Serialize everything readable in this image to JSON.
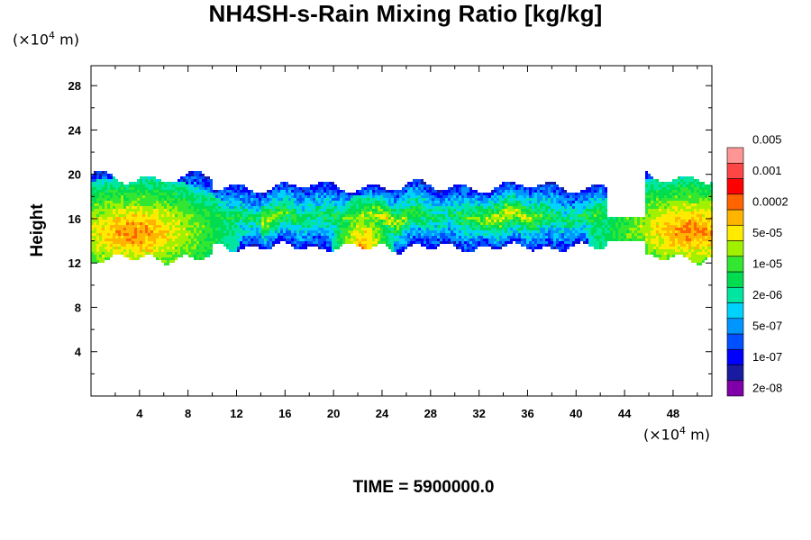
{
  "chart_data": {
    "type": "heatmap",
    "title": "NH4SH-s-Rain Mixing Ratio [kg/kg]",
    "ylabel": "Height",
    "xlabel": "",
    "x_unit_prefix": "(×10",
    "x_unit_exp": "4",
    "x_unit_suffix": " m)",
    "y_unit_prefix": "(×10",
    "y_unit_exp": "4",
    "y_unit_suffix": " m)",
    "xlim": [
      0,
      51.2
    ],
    "ylim": [
      0,
      29.8
    ],
    "x_ticks": [
      4,
      8,
      12,
      16,
      20,
      24,
      28,
      32,
      36,
      40,
      44,
      48
    ],
    "x_tick_labels": [
      "4",
      "8",
      "12",
      "16",
      "20",
      "24",
      "28",
      "32",
      "36",
      "40",
      "44",
      "48"
    ],
    "y_ticks": [
      4,
      8,
      12,
      16,
      20,
      24,
      28
    ],
    "y_tick_labels": [
      "4",
      "8",
      "12",
      "16",
      "20",
      "24",
      "28"
    ],
    "colorbar": {
      "colors": [
        "#7f00a8",
        "#1a1aa0",
        "#0000ff",
        "#0050ff",
        "#0096ff",
        "#00d2ff",
        "#00e6a0",
        "#00dc50",
        "#32e632",
        "#a0f000",
        "#ffea00",
        "#ffb400",
        "#ff6400",
        "#ff0000",
        "#ff4646",
        "#ff9696"
      ],
      "labels": [
        "2e-08",
        "1e-07",
        "5e-07",
        "2e-06",
        "1e-05",
        "5e-05",
        "0.0002",
        "0.001",
        "0.005"
      ]
    },
    "field": {
      "description_levels": "0=none, 1..15 colorbar level index",
      "band": {
        "bottom": 12.2,
        "top": 20.2
      },
      "hot_regions": [
        {
          "x": 3.5,
          "y": 14.8,
          "level": 12
        },
        {
          "x": 49.5,
          "y": 15.0,
          "level": 12
        },
        {
          "x": 22.3,
          "y": 13.2,
          "level": 12
        }
      ]
    }
  },
  "time_label": "TIME = 5900000.0"
}
